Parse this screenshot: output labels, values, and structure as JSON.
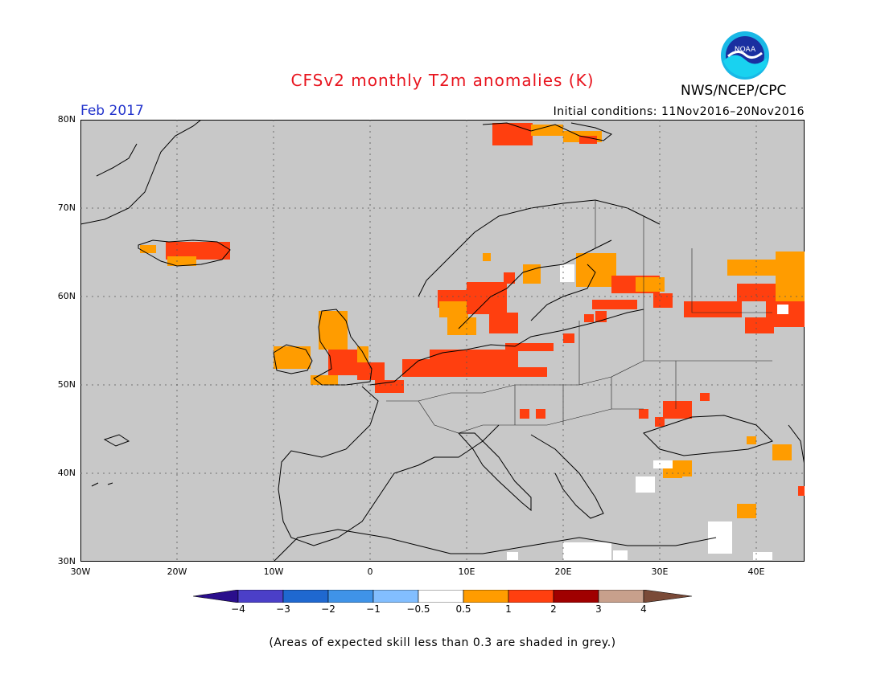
{
  "header": {
    "title": "CFSv2 monthly T2m anomalies (K)",
    "agency": "NWS/NCEP/CPC",
    "logo_text": "NOAA",
    "month": "Feb 2017",
    "initial_conditions": "Initial conditions: 11Nov2016–20Nov2016"
  },
  "map": {
    "lat_labels": [
      "80N",
      "70N",
      "60N",
      "50N",
      "40N",
      "30N"
    ],
    "lon_labels": [
      "30W",
      "20W",
      "10W",
      "0",
      "10E",
      "20E",
      "30E",
      "40E"
    ],
    "background_color": "#c8c8c8",
    "grid": "dotted"
  },
  "colorbar": {
    "labels": [
      "−4",
      "−3",
      "−2",
      "−1",
      "−0.5",
      "0.5",
      "1",
      "2",
      "3",
      "4"
    ],
    "colors": [
      "#2a0e8c",
      "#4b3fc8",
      "#1f68d0",
      "#3f93e8",
      "#82beff",
      "#ffffff",
      "#ff9c00",
      "#ff3f0f",
      "#a00000",
      "#c8a08c",
      "#7a4a38"
    ]
  },
  "footnote": "(Areas of expected skill less than 0.3 are shaded in grey.)",
  "anomaly_regions": [
    {
      "region": "Svalbard",
      "class": "1 to 2"
    },
    {
      "region": "Iceland",
      "class": "1 to 2"
    },
    {
      "region": "Ireland / Scotland",
      "class": "0.5 to 1"
    },
    {
      "region": "Northern Europe (Germany, Denmark, S. Sweden)",
      "class": "1 to 2"
    },
    {
      "region": "Finland / NW Russia",
      "class": "0.5 to 2"
    },
    {
      "region": "N. Russia (east)",
      "class": "0.5 to 2"
    },
    {
      "region": "Ukraine / Black Sea coast",
      "class": "1 to 2"
    },
    {
      "region": "Turkey / Caucasus",
      "class": "0.5 to 1"
    }
  ]
}
